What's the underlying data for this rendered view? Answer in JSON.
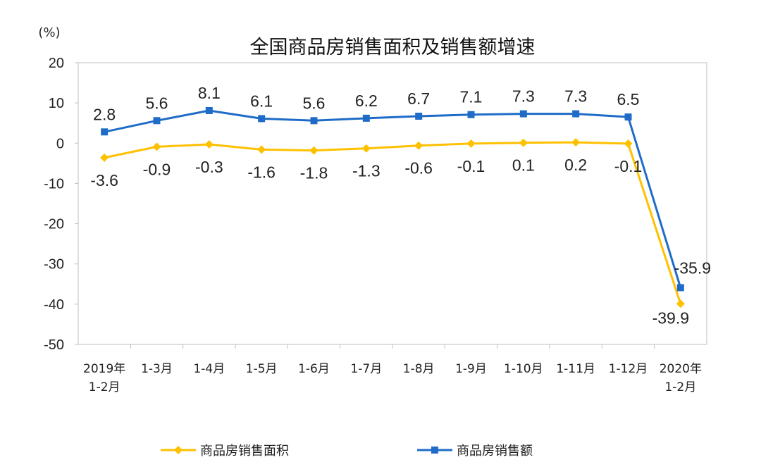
{
  "chart_data": {
    "type": "line",
    "title": "全国商品房销售面积及销售额增速",
    "unit_label": "(%)",
    "categories": [
      [
        "2019年",
        "1-2月"
      ],
      [
        "1-3月"
      ],
      [
        "1-4月"
      ],
      [
        "1-5月"
      ],
      [
        "1-6月"
      ],
      [
        "1-7月"
      ],
      [
        "1-8月"
      ],
      [
        "1-9月"
      ],
      [
        "1-10月"
      ],
      [
        "1-11月"
      ],
      [
        "1-12月"
      ],
      [
        "2020年",
        "1-2月"
      ]
    ],
    "ylim": [
      -50,
      20
    ],
    "yticks": [
      20,
      10,
      0,
      -10,
      -20,
      -30,
      -40,
      -50
    ],
    "grid": false,
    "legend_position": "bottom",
    "series": [
      {
        "name": "商品房销售面积",
        "color": "#FFC000",
        "marker": "diamond",
        "values": [
          -3.6,
          -0.9,
          -0.3,
          -1.6,
          -1.8,
          -1.3,
          -0.6,
          -0.1,
          0.1,
          0.2,
          -0.1,
          -39.9
        ],
        "labels": [
          "-3.6",
          "-0.9",
          "-0.3",
          "-1.6",
          "-1.8",
          "-1.3",
          "-0.6",
          "-0.1",
          "0.1",
          "0.2",
          "-0.1",
          "-39.9"
        ]
      },
      {
        "name": "商品房销售额",
        "color": "#1F6CC8",
        "marker": "square",
        "values": [
          2.8,
          5.6,
          8.1,
          6.1,
          5.6,
          6.2,
          6.7,
          7.1,
          7.3,
          7.3,
          6.5,
          -35.9
        ],
        "labels": [
          "2.8",
          "5.6",
          "8.1",
          "6.1",
          "5.6",
          "6.2",
          "6.7",
          "7.1",
          "7.3",
          "7.3",
          "6.5",
          "-35.9"
        ]
      }
    ]
  }
}
